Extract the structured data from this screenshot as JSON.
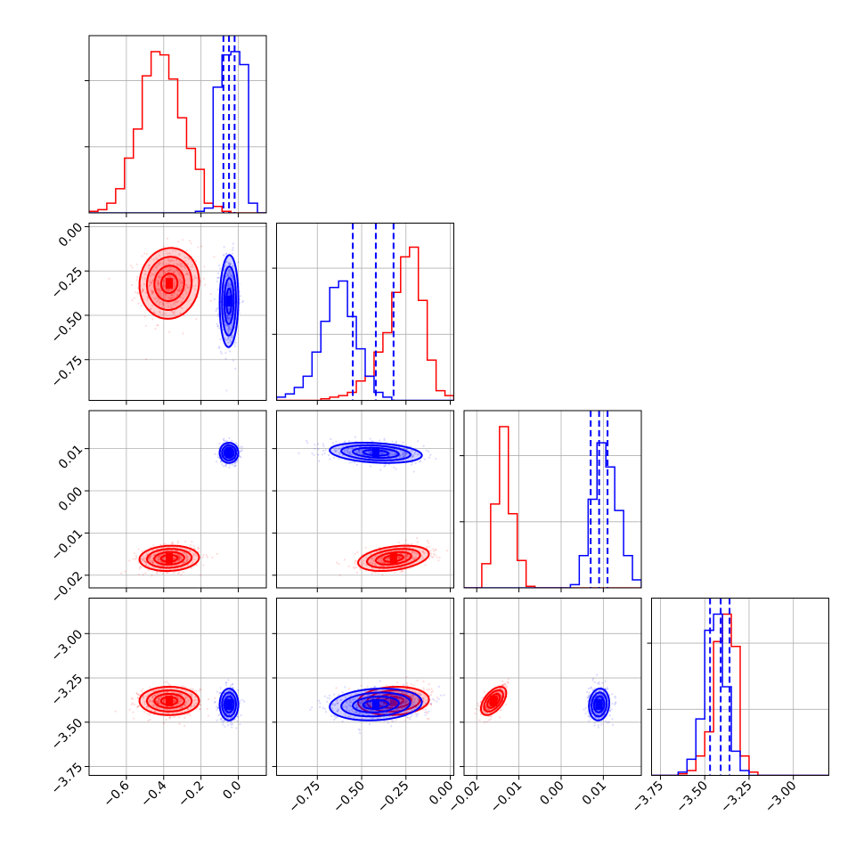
{
  "chart_data": {
    "type": "corner",
    "parameters": [
      {
        "tick_labels": [
          "−0.6",
          "−0.4",
          "−0.2",
          "0.0"
        ],
        "ticks": [
          -0.6,
          -0.4,
          -0.2,
          0.0
        ],
        "range": [
          -0.8,
          0.15
        ]
      },
      {
        "tick_labels": [
          "0.00",
          "−0.25",
          "−0.50",
          "−0.75"
        ],
        "ticks": [
          0.0,
          -0.25,
          -0.5,
          -0.75
        ],
        "range": [
          -0.98,
          0.02
        ]
      },
      {
        "tick_labels": [
          "0.01",
          "0.00",
          "−0.01",
          "−0.02"
        ],
        "ticks": [
          0.01,
          0.0,
          -0.01,
          -0.02
        ],
        "range": [
          -0.023,
          0.019
        ]
      },
      {
        "tick_labels": [
          "−3.00",
          "−3.25",
          "−3.50",
          "−3.75"
        ],
        "ticks": [
          -3.0,
          -3.25,
          -3.5,
          -3.75
        ],
        "range": [
          -3.8,
          -2.8
        ]
      }
    ],
    "grid": true,
    "series": [
      {
        "color": "#ff0000",
        "means": [
          -0.37,
          -0.32,
          -0.016,
          -3.38
        ],
        "sds": [
          0.08,
          0.1,
          0.0015,
          0.04
        ],
        "corr": [
          [
            1,
            0.05,
            0.08,
            0.0
          ],
          [
            0.05,
            1,
            0.35,
            0.1
          ],
          [
            0.08,
            0.35,
            1,
            0.55
          ],
          [
            0.0,
            0.1,
            0.55,
            1
          ]
        ],
        "hist_heights": [
          [
            0.01,
            0.02,
            0.06,
            0.15,
            0.34,
            0.52,
            0.85,
            1.0,
            0.98,
            0.83,
            0.59,
            0.4,
            0.27,
            0.06,
            0.04,
            0.01,
            0.0,
            0.0,
            0.0,
            0.0
          ],
          [
            0.0,
            0.0,
            0.0,
            0.0,
            0.0,
            0.01,
            0.02,
            0.03,
            0.05,
            0.12,
            0.15,
            0.3,
            0.42,
            0.67,
            0.89,
            0.95,
            0.62,
            0.25,
            0.06,
            0.03
          ],
          [
            0.0,
            0.0,
            0.15,
            0.52,
            1.0,
            0.46,
            0.17,
            0.01,
            0.0,
            0.0,
            0.0,
            0.0,
            0.0,
            0.0,
            0.0,
            0.0,
            0.0,
            0.0,
            0.0,
            0.0
          ],
          [
            0.0,
            0.0,
            0.0,
            0.01,
            0.03,
            0.12,
            0.27,
            0.83,
            1.0,
            0.8,
            0.12,
            0.02,
            0.0,
            0.0,
            0.0,
            0.0,
            0.0,
            0.0,
            0.0,
            0.0
          ]
        ]
      },
      {
        "color": "#0000ff",
        "means": [
          -0.05,
          -0.42,
          0.009,
          -3.4
        ],
        "sds": [
          0.025,
          0.13,
          0.0012,
          0.045
        ],
        "corr": [
          [
            1,
            0.05,
            0.0,
            0.0
          ],
          [
            0.05,
            1,
            -0.25,
            0.15
          ],
          [
            0.0,
            -0.25,
            1,
            0.1
          ],
          [
            0.0,
            0.15,
            0.1,
            1
          ]
        ],
        "quantiles": [
          [
            -0.08,
            -0.05,
            -0.02
          ],
          [
            -0.55,
            -0.42,
            -0.32
          ],
          [
            0.007,
            0.009,
            0.011
          ],
          [
            -3.47,
            -3.41,
            -3.36
          ]
        ],
        "hist_heights": [
          [
            0.0,
            0.0,
            0.0,
            0.0,
            0.0,
            0.0,
            0.0,
            0.0,
            0.0,
            0.0,
            0.0,
            0.0,
            0.01,
            0.03,
            0.78,
            0.98,
            1.0,
            0.92,
            0.06,
            0.0
          ],
          [
            0.02,
            0.04,
            0.08,
            0.15,
            0.3,
            0.49,
            0.7,
            0.74,
            0.52,
            0.32,
            0.15,
            0.05,
            0.02,
            0.0,
            0.0,
            0.0,
            0.0,
            0.0,
            0.0,
            0.0
          ],
          [
            0.0,
            0.0,
            0.0,
            0.0,
            0.0,
            0.0,
            0.0,
            0.0,
            0.0,
            0.0,
            0.0,
            0.0,
            0.02,
            0.2,
            0.55,
            0.9,
            0.75,
            0.48,
            0.2,
            0.05
          ],
          [
            0.0,
            0.0,
            0.0,
            0.02,
            0.1,
            0.35,
            0.9,
            1.0,
            0.55,
            0.15,
            0.03,
            0.0,
            0.0,
            0.0,
            0.0,
            0.0,
            0.0,
            0.0,
            0.0,
            0.0
          ]
        ]
      }
    ]
  }
}
